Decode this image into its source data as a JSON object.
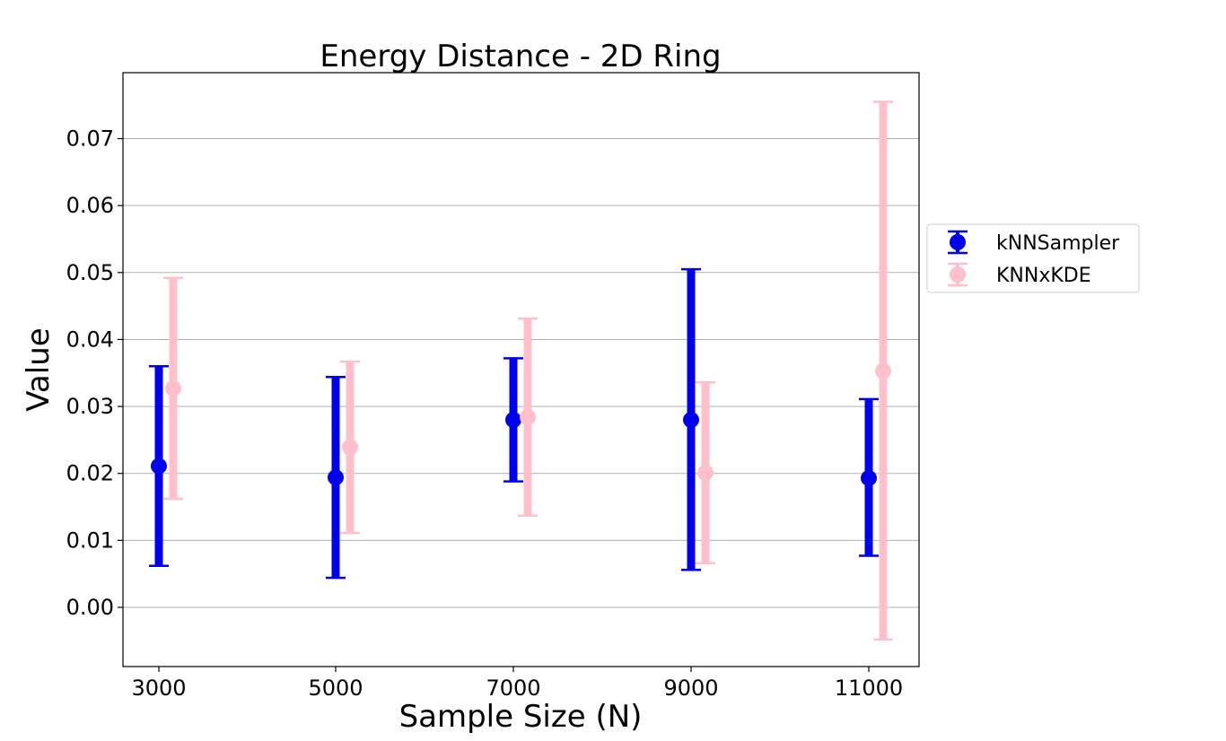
{
  "chart_data": {
    "type": "scatter",
    "title": "Energy Distance - 2D Ring",
    "xlabel": "Sample Size (N)",
    "ylabel": "Value",
    "categories": [
      "3000",
      "5000",
      "7000",
      "9000",
      "11000"
    ],
    "ylim": [
      -0.0088,
      0.0795
    ],
    "yticks": [
      "0.00",
      "0.01",
      "0.02",
      "0.03",
      "0.04",
      "0.05",
      "0.06",
      "0.07"
    ],
    "grid": "y",
    "legend_position": "right-outside",
    "series": [
      {
        "name": "kNNSampler",
        "color": "#0000ee",
        "values": [
          0.0211,
          0.0194,
          0.028,
          0.028,
          0.0193
        ],
        "lower": [
          0.0062,
          0.0044,
          0.0188,
          0.0056,
          0.0077
        ],
        "upper": [
          0.036,
          0.0344,
          0.0372,
          0.0505,
          0.0311
        ]
      },
      {
        "name": "KNNxKDE",
        "color": "#ffc0cb",
        "values": [
          0.0327,
          0.0239,
          0.0284,
          0.0201,
          0.0353
        ],
        "lower": [
          0.0162,
          0.0111,
          0.0137,
          0.0066,
          -0.0048
        ],
        "upper": [
          0.0492,
          0.0367,
          0.0431,
          0.0336,
          0.0755
        ]
      }
    ]
  }
}
